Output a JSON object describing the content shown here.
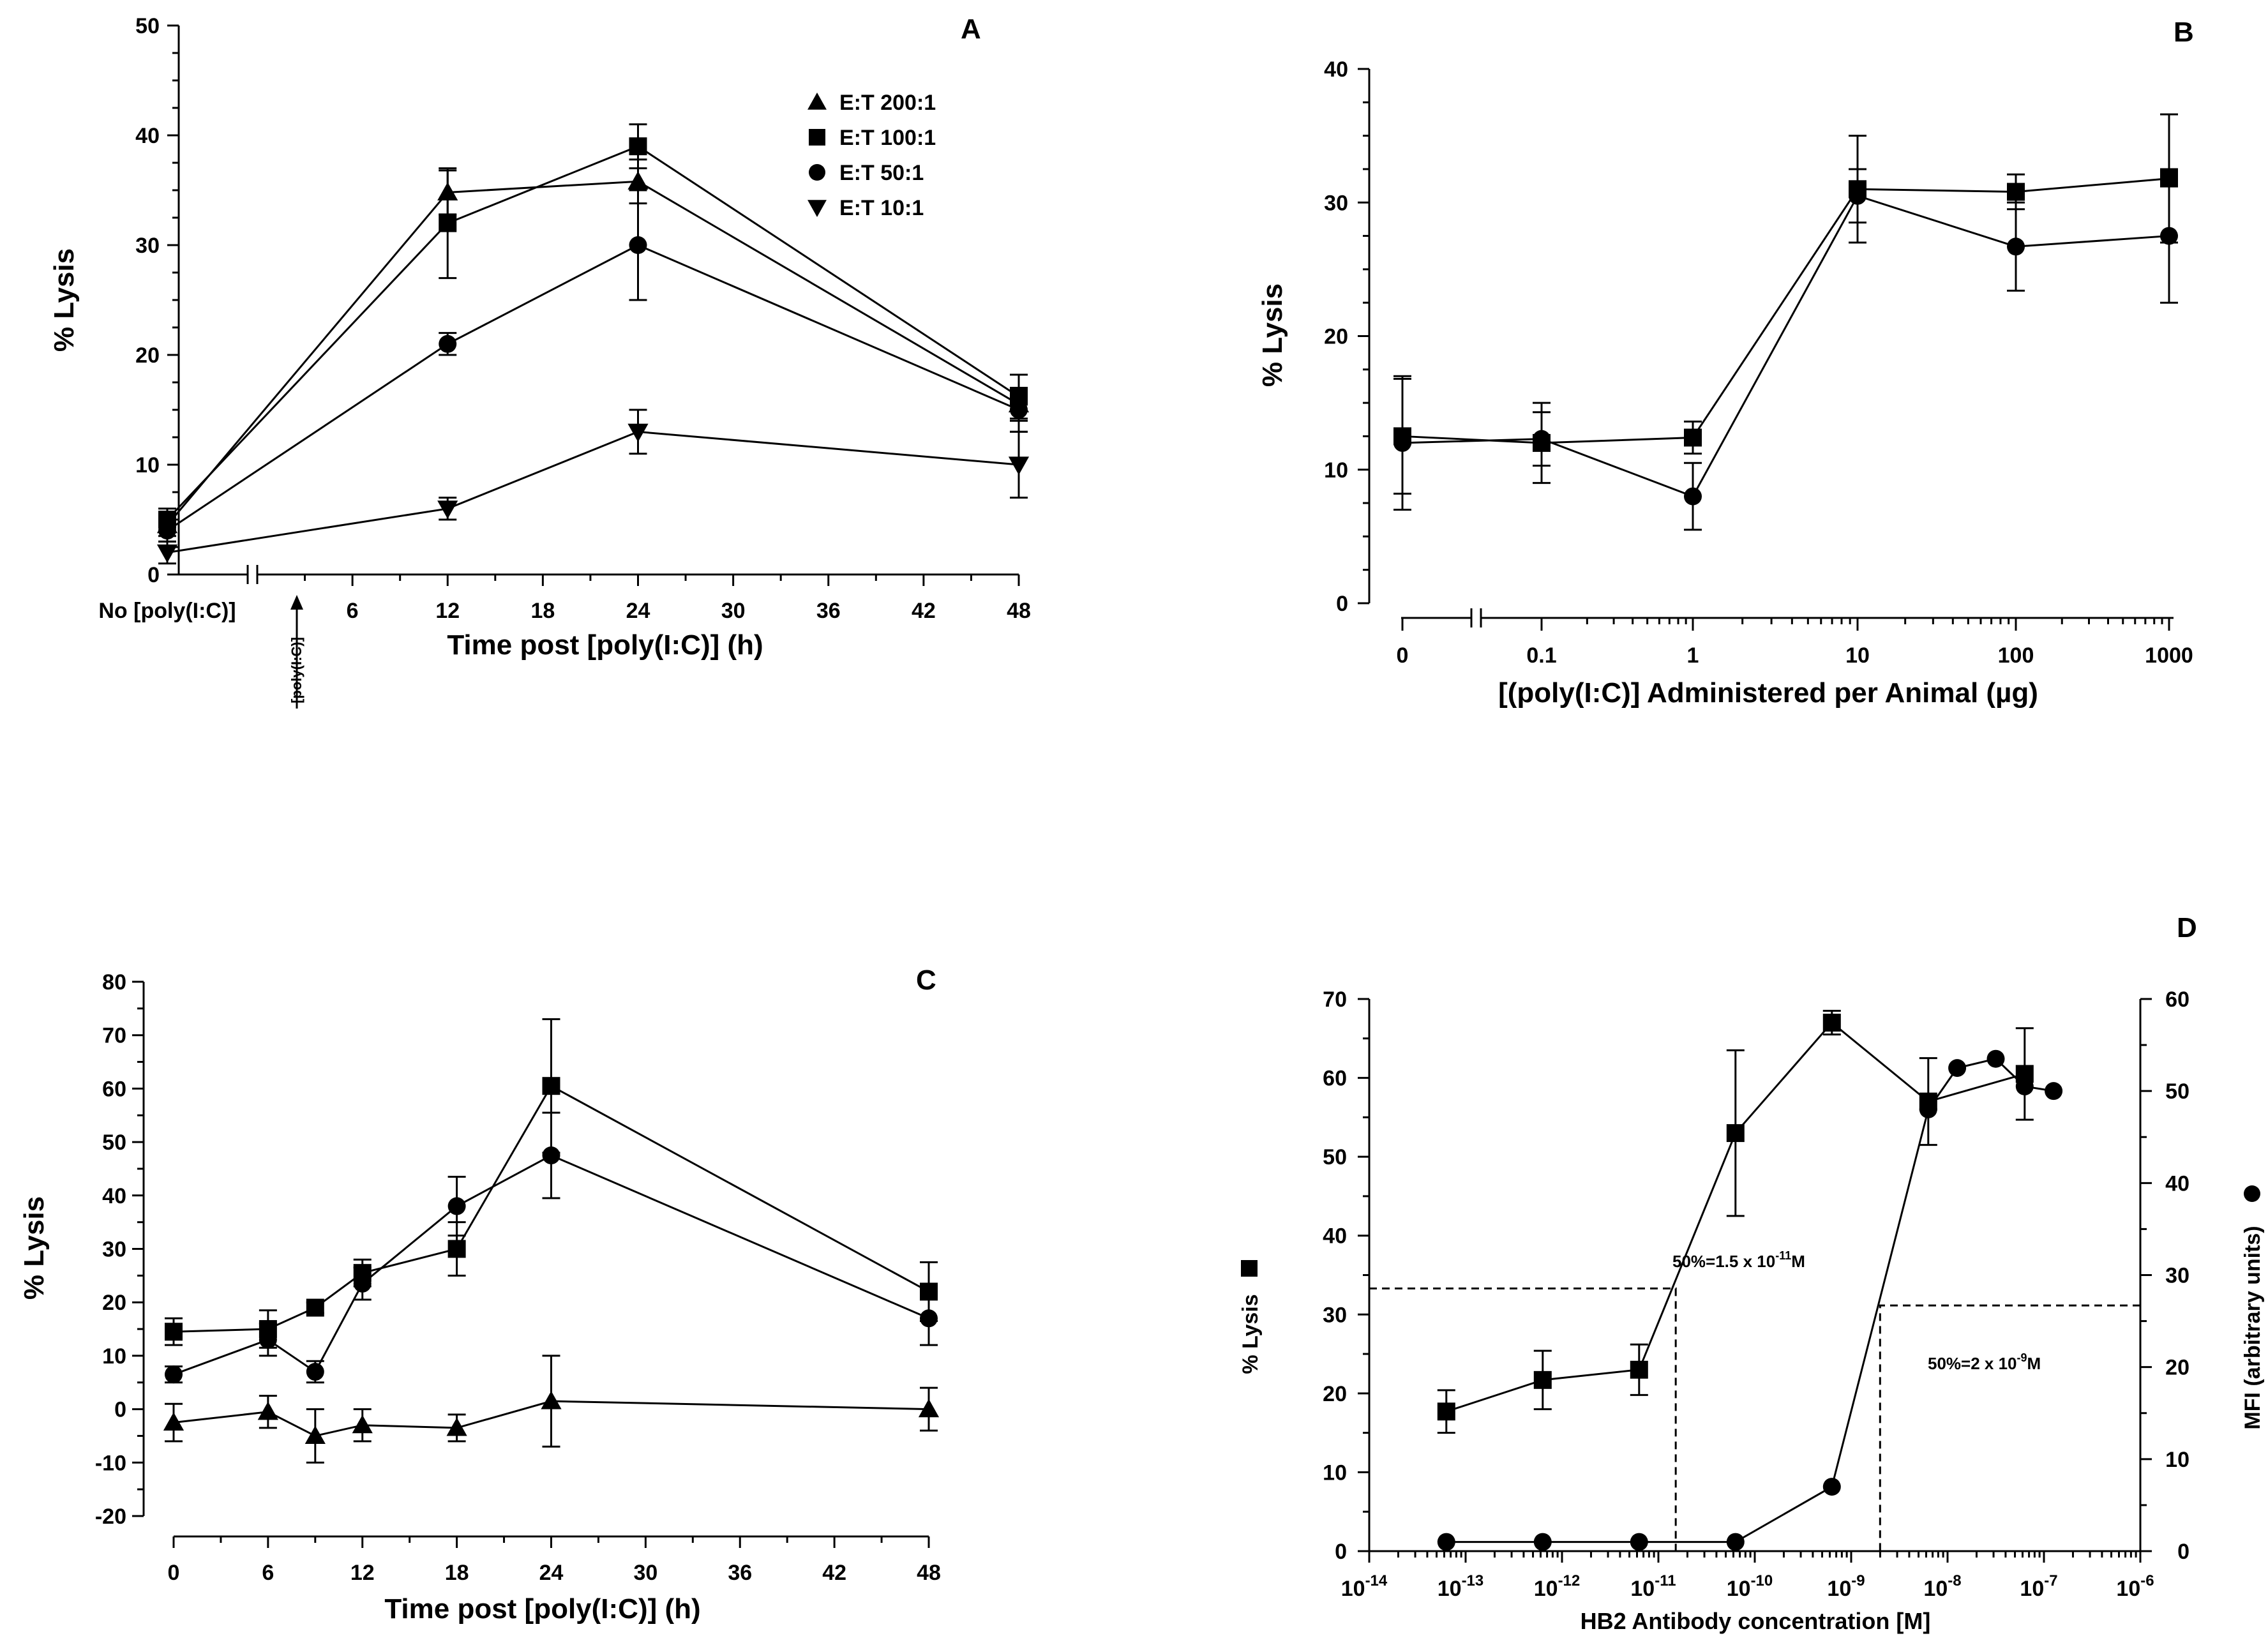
{
  "chart_data": [
    {
      "panel": "A",
      "type": "line",
      "xlabel": "Time post [poly(I:C)] (h)",
      "ylabel": "% Lysis",
      "ylim": [
        0,
        50
      ],
      "yticks": [
        "0",
        "10",
        "20",
        "30",
        "40",
        "50"
      ],
      "xticks": [
        "No [poly(I:C)]",
        "6",
        "12",
        "18",
        "24",
        "30",
        "36",
        "42",
        "48"
      ],
      "axis_break_label": "No [poly(I:C)]",
      "annotation": "[poly(I:C)]",
      "x": [
        "No",
        12,
        24,
        48
      ],
      "series": [
        {
          "name": "E:T 200:1",
          "marker": "triangle",
          "values": [
            4.5,
            34.8,
            35.8,
            15.5
          ],
          "errors": [
            1.0,
            2.0,
            2.0,
            1.5
          ]
        },
        {
          "name": "E:T 100:1",
          "marker": "square",
          "values": [
            5.0,
            32.0,
            39.0,
            16.2
          ],
          "errors": [
            1.0,
            5.0,
            2.0,
            2.0
          ]
        },
        {
          "name": "E:T 50:1",
          "marker": "circle",
          "values": [
            4.0,
            21.0,
            30.0,
            15.0
          ],
          "errors": [
            1.0,
            1.0,
            5.0,
            2.0
          ]
        },
        {
          "name": "E:T 10:1",
          "marker": "triangle-down",
          "values": [
            2.0,
            6.0,
            13.0,
            10.0
          ],
          "errors": [
            1.0,
            1.0,
            2.0,
            3.0
          ]
        }
      ]
    },
    {
      "panel": "B",
      "type": "line",
      "xlabel": "[(poly(I:C)] Administered per Animal (µg)",
      "ylabel": "% Lysis",
      "ylim": [
        0,
        40
      ],
      "yticks": [
        "0",
        "10",
        "20",
        "30",
        "40"
      ],
      "xticks": [
        "0",
        "0.1",
        "1",
        "10",
        "100",
        "1000"
      ],
      "x": [
        0,
        0.1,
        1,
        10,
        100,
        1000
      ],
      "series": [
        {
          "name": "square",
          "marker": "square",
          "values": [
            12.5,
            12.0,
            12.4,
            31.0,
            30.8,
            31.8
          ],
          "errors": [
            4.3,
            3.0,
            1.2,
            4.0,
            1.3,
            4.8
          ]
        },
        {
          "name": "circle",
          "marker": "circle",
          "values": [
            12.0,
            12.3,
            8.0,
            30.5,
            26.7,
            27.5
          ],
          "errors": [
            5.0,
            2.0,
            2.5,
            2.0,
            3.3,
            5.0
          ]
        }
      ]
    },
    {
      "panel": "C",
      "type": "line",
      "xlabel": "Time post [poly(I:C)] (h)",
      "ylabel": "% Lysis",
      "ylim": [
        -20,
        80
      ],
      "yticks": [
        "-20",
        "-10",
        "0",
        "10",
        "20",
        "30",
        "40",
        "50",
        "60",
        "70",
        "80"
      ],
      "xticks": [
        "0",
        "6",
        "12",
        "18",
        "24",
        "30",
        "36",
        "42",
        "48"
      ],
      "x": [
        0,
        6,
        9,
        12,
        18,
        24,
        48
      ],
      "series": [
        {
          "name": "square",
          "marker": "square",
          "values": [
            14.5,
            15.0,
            19.0,
            25.5,
            30.0,
            60.5,
            22.0
          ],
          "errors": [
            2.5,
            3.5,
            1.0,
            2.5,
            5.0,
            12.5,
            5.5
          ]
        },
        {
          "name": "circle",
          "marker": "circle",
          "values": [
            6.5,
            13.0,
            7.0,
            23.5,
            38.0,
            47.5,
            17.0
          ],
          "errors": [
            1.5,
            3.0,
            2.0,
            3.0,
            5.5,
            8.0,
            5.0
          ]
        },
        {
          "name": "triangle",
          "marker": "triangle",
          "values": [
            -2.5,
            -0.5,
            -5.0,
            -3.0,
            -3.5,
            1.5,
            0.0
          ],
          "errors": [
            3.5,
            3.0,
            5.0,
            3.0,
            2.5,
            8.5,
            4.0
          ]
        }
      ]
    },
    {
      "panel": "D",
      "type": "line",
      "xlabel": "HB2 Antibody concentration [M]",
      "ylabel_left": "% Lysis",
      "ylabel_right": "MFI (arbitrary units)",
      "ylim_left": [
        0,
        70
      ],
      "ylim_right": [
        0,
        60
      ],
      "yticks_left": [
        "0",
        "10",
        "20",
        "30",
        "40",
        "50",
        "60",
        "70"
      ],
      "yticks_right": [
        "0",
        "10",
        "20",
        "30",
        "40",
        "50",
        "60"
      ],
      "xticks": [
        {
          "base": "10",
          "exp": "-14"
        },
        {
          "base": "10",
          "exp": "-13"
        },
        {
          "base": "10",
          "exp": "-12"
        },
        {
          "base": "10",
          "exp": "-11"
        },
        {
          "base": "10",
          "exp": "-10"
        },
        {
          "base": "10",
          "exp": "-9"
        },
        {
          "base": "10",
          "exp": "-8"
        },
        {
          "base": "10",
          "exp": "-7"
        },
        {
          "base": "10",
          "exp": "-6"
        }
      ],
      "xlim_log10": [
        -14,
        -6
      ],
      "annotations": [
        {
          "text": "50%=1.5 x 10",
          "exp": "-11",
          "unit": "M"
        },
        {
          "text": "50%=2 x 10",
          "exp": "-9",
          "unit": "M"
        }
      ],
      "ec50_log10": [
        -10.82,
        -8.7
      ],
      "guide_levels": {
        "lysis_left": 33.3,
        "mfi_right": 26.7
      },
      "series": [
        {
          "name": "% Lysis",
          "marker": "square",
          "axis": "left",
          "x_log10": [
            -13.2,
            -12.2,
            -11.2,
            -10.2,
            -9.2,
            -8.2,
            -7.2
          ],
          "values": [
            17.7,
            21.7,
            23.0,
            53.0,
            67.0,
            57.0,
            60.5
          ],
          "errors": [
            2.7,
            3.7,
            3.2,
            10.5,
            1.5,
            5.5,
            5.8
          ]
        },
        {
          "name": "MFI",
          "marker": "circle",
          "axis": "right",
          "x_log10": [
            -13.2,
            -12.2,
            -11.2,
            -10.2,
            -9.2,
            -8.2,
            -7.9,
            -7.5,
            -7.2,
            -6.9
          ],
          "values": [
            1.0,
            1.0,
            1.0,
            1.0,
            7.0,
            48.0,
            52.5,
            53.5,
            50.5,
            50.0
          ]
        }
      ]
    }
  ]
}
